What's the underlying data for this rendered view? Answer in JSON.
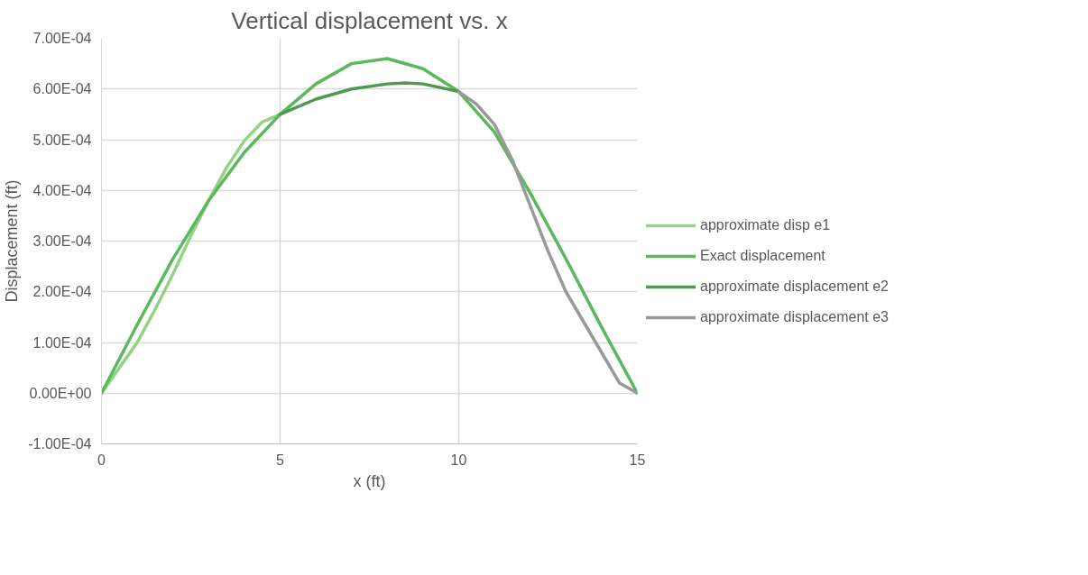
{
  "chart_data": {
    "type": "line",
    "title": "Vertical displacement vs. x",
    "xlabel": "x (ft)",
    "ylabel": "Displacement (ft)",
    "xlim": [
      0,
      15
    ],
    "xticks": [
      0,
      5,
      10,
      15
    ],
    "ylim": [
      -0.0001,
      0.0007
    ],
    "yticks": [
      {
        "value": -0.0001,
        "label": "-1.00E-04"
      },
      {
        "value": 0,
        "label": "0.00E+00"
      },
      {
        "value": 0.0001,
        "label": "1.00E-04"
      },
      {
        "value": 0.0002,
        "label": "2.00E-04"
      },
      {
        "value": 0.0003,
        "label": "3.00E-04"
      },
      {
        "value": 0.0004,
        "label": "4.00E-04"
      },
      {
        "value": 0.0005,
        "label": "5.00E-04"
      },
      {
        "value": 0.0006,
        "label": "6.00E-04"
      },
      {
        "value": 0.0007,
        "label": "7.00E-04"
      }
    ],
    "grid": true,
    "legend": "right",
    "marker": "none",
    "line_style": "solid",
    "series": [
      {
        "name": "approximate disp e1",
        "color": "#92d484",
        "x": [
          0,
          0.5,
          1,
          1.5,
          2,
          2.5,
          3,
          3.5,
          4,
          4.5,
          5
        ],
        "values": [
          0,
          5e-05,
          0.0001,
          0.000165,
          0.000235,
          0.00031,
          0.00038,
          0.000445,
          0.000498,
          0.000535,
          0.00055
        ]
      },
      {
        "name": "Exact displacement",
        "color": "#5cb85c",
        "x": [
          0,
          1,
          2,
          3,
          4,
          5,
          6,
          7,
          8,
          9,
          10,
          11,
          12,
          13,
          14,
          15
        ],
        "values": [
          0,
          0.000135,
          0.000265,
          0.00038,
          0.000475,
          0.00055,
          0.00061,
          0.00065,
          0.00066,
          0.00064,
          0.000595,
          0.000515,
          0.000395,
          0.000265,
          0.00013,
          0
        ]
      },
      {
        "name": "approximate displacement e2",
        "color": "#4e9a4e",
        "x": [
          5,
          6,
          7,
          8,
          8.5,
          9,
          10
        ],
        "values": [
          0.00055,
          0.00058,
          0.0006,
          0.00061,
          0.000612,
          0.00061,
          0.000595
        ]
      },
      {
        "name": "approximate displacement e3",
        "color": "#999999",
        "x": [
          10,
          10.5,
          11,
          11.5,
          12,
          12.5,
          13,
          13.5,
          14,
          14.5,
          15
        ],
        "values": [
          0.000595,
          0.00057,
          0.00053,
          0.00046,
          0.00037,
          0.00028,
          0.0002,
          0.00014,
          8e-05,
          2e-05,
          0
        ]
      }
    ]
  }
}
